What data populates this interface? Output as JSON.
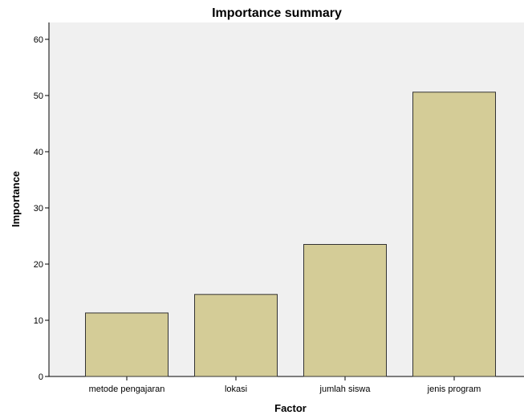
{
  "chart_data": {
    "type": "bar",
    "title": "Importance summary",
    "xlabel": "Factor",
    "ylabel": "Importance",
    "categories": [
      "metode pengajaran",
      "lokasi",
      "jumlah siswa",
      "jenis program"
    ],
    "values": [
      11.3,
      14.6,
      23.5,
      50.6
    ],
    "ylim": [
      0,
      63
    ],
    "yticks": [
      0,
      10,
      20,
      30,
      40,
      50,
      60
    ],
    "grid": false,
    "legend": "none",
    "colors": {
      "bar_fill": "#d4cc97",
      "bar_stroke": "#333333",
      "plot_background": "#f0f0f0",
      "axis": "#000000"
    }
  }
}
